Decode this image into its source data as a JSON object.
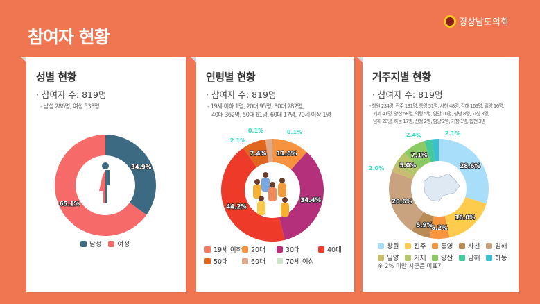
{
  "header": {
    "title": "참여자 현황",
    "org": "경상남도의회",
    "emblem_text": "의회"
  },
  "cards": [
    {
      "title": "성별 현황",
      "count": "· 참여자 수:  819명",
      "detail": "- 남성  286명, 여성 533명"
    },
    {
      "title": "연령별 현황",
      "count": "· 참여자 수: 819명",
      "detail1": "- 19세 이하 1명, 20대 95명, 30대 282명,",
      "detail2": "40대 362명, 50대 61명, 60대 17명, 70세 이상 1명"
    },
    {
      "title": "거주지별 현황",
      "count": "· 참여자 수: 819명",
      "detail1": "- 창원 234명, 진주 131명, 통영 51명, 사천 48명, 김해 169명, 밀양 16명,",
      "detail2": "거제 41명, 양산 58명, 의령 5명, 함안 10명, 창녕 8명, 고성 3명,",
      "detail3": "남해 20명, 하동 17명, 산청 2명, 함양 2명, 거창 1명, 합천 3명",
      "note": "※ 2% 미만 시군은 미표기"
    }
  ],
  "chart_data": [
    {
      "type": "pie",
      "donut": true,
      "categories": [
        "남성",
        "여성"
      ],
      "values": [
        34.9,
        65.1
      ],
      "labels": [
        "34.9%",
        "65.1%"
      ],
      "colors": [
        "#3c6a82",
        "#f76a6a"
      ],
      "legend": "bottom",
      "center_icon": "gender-icon"
    },
    {
      "type": "pie",
      "donut": true,
      "categories": [
        "19세 이하",
        "20대",
        "30대",
        "40대",
        "50대",
        "60대",
        "70세 이상"
      ],
      "values": [
        0.1,
        11.6,
        34.4,
        44.2,
        7.4,
        2.1,
        0.1
      ],
      "labels": [
        "0.1%",
        "11.6%",
        "34.4%",
        "44.2%",
        "7.4%",
        "2.1%",
        "0.1%"
      ],
      "colors": [
        "#f07a5a",
        "#f7923e",
        "#b5307a",
        "#ee3a28",
        "#e0661e",
        "#dfa98a",
        "#cfe3c8"
      ],
      "legend": "bottom",
      "center_icon": "family-illustration"
    },
    {
      "type": "pie",
      "donut": true,
      "categories": [
        "창원",
        "진주",
        "통영",
        "사천",
        "김해",
        "밀양",
        "거제",
        "양산",
        "남해",
        "하동"
      ],
      "values": [
        28.6,
        16.0,
        6.2,
        5.9,
        20.6,
        2.0,
        5.0,
        7.1,
        2.4,
        2.1
      ],
      "labels": [
        "28.6%",
        "16.0%",
        "6.2%",
        "5.9%",
        "20.6%",
        "2.0%",
        "5.0%",
        "7.1%",
        "2.4%",
        "2.1%"
      ],
      "colors": [
        "#a9defb",
        "#fecc4c",
        "#f8963f",
        "#b98b56",
        "#c9a27f",
        "#c8bc73",
        "#b5c66b",
        "#8bc962",
        "#46c89d",
        "#3abfcf"
      ],
      "legend": "bottom",
      "center_icon": "gyeongnam-map"
    }
  ]
}
